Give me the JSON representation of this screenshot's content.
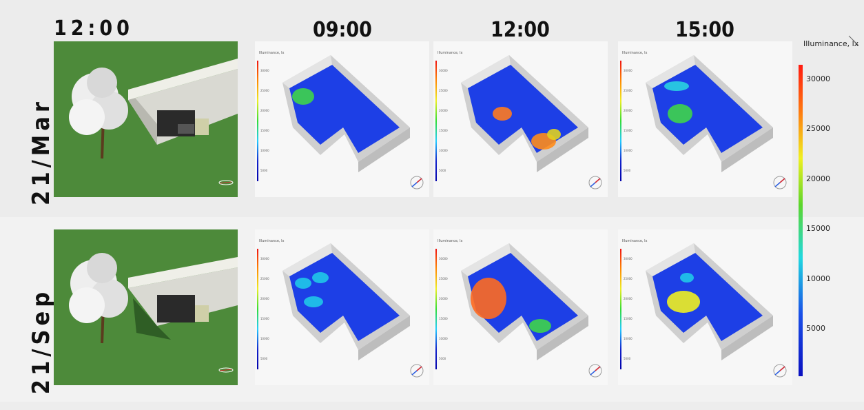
{
  "header": {
    "main_time": "12:00",
    "times": [
      "09:00",
      "12:00",
      "15:00"
    ]
  },
  "rows": [
    {
      "label": "21/Mar"
    },
    {
      "label": "21/Sep"
    }
  ],
  "legend": {
    "title": "Illuminance, lx",
    "ticks": [
      "30000",
      "25000",
      "20000",
      "15000",
      "10000",
      "5000"
    ],
    "colors": {
      "high": "#ff1a10",
      "mid": "#f0f020",
      "low": "#0a10c0"
    }
  },
  "mini_legend": {
    "title": "Illuminance, lx",
    "ticks": [
      "30000",
      "25000",
      "20000",
      "15000",
      "10000",
      "5000"
    ]
  }
}
